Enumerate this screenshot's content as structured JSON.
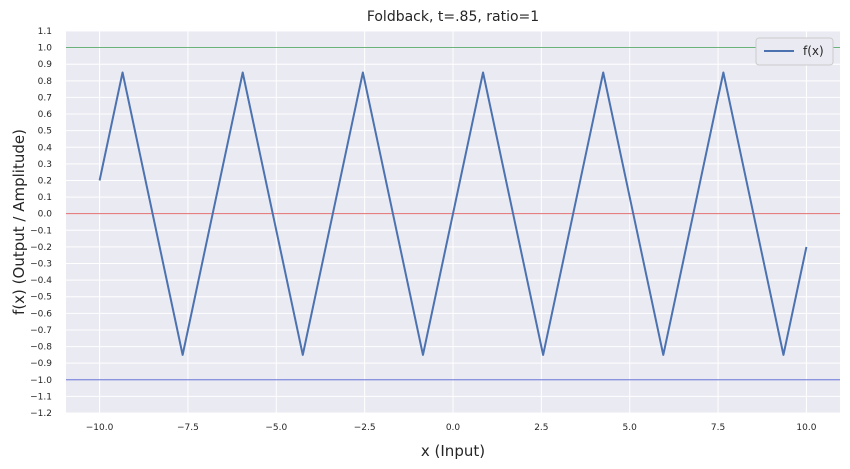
{
  "chart_data": {
    "type": "line",
    "title": "Foldback, t=.85, ratio=1",
    "xlabel": "x (Input)",
    "ylabel": "f(x) (Output / Amplitude)",
    "xlim": [
      -10.95,
      10.95
    ],
    "ylim": [
      -1.2,
      1.1
    ],
    "xticks": [
      "−10.0",
      "−7.5",
      "−5.0",
      "−2.5",
      "0.0",
      "2.5",
      "5.0",
      "7.5",
      "10.0"
    ],
    "xtick_values": [
      -10,
      -7.5,
      -5,
      -2.5,
      0,
      2.5,
      5,
      7.5,
      10
    ],
    "yticks": [
      "1.1",
      "1.0",
      "0.9",
      "0.8",
      "0.7",
      "0.6",
      "0.5",
      "0.4",
      "0.3",
      "0.2",
      "0.1",
      "0.0",
      "−0.1",
      "−0.2",
      "−0.3",
      "−0.4",
      "−0.5",
      "−0.6",
      "−0.7",
      "−0.8",
      "−0.9",
      "−1.0",
      "−1.1",
      "−1.2"
    ],
    "ytick_values": [
      1.1,
      1.0,
      0.9,
      0.8,
      0.7,
      0.6,
      0.5,
      0.4,
      0.3,
      0.2,
      0.1,
      0.0,
      -0.1,
      -0.2,
      -0.3,
      -0.4,
      -0.5,
      -0.6,
      -0.7,
      -0.8,
      -0.9,
      -1.0,
      -1.1,
      -1.2
    ],
    "grid": true,
    "legend_placement": "top-right",
    "series": [
      {
        "name": "f(x)",
        "color": "#4c72b0",
        "x": [
          -10.0,
          -9.35,
          -7.65,
          -5.95,
          -4.25,
          -2.55,
          -0.85,
          0.85,
          2.55,
          4.25,
          5.95,
          7.65,
          9.35,
          10.0
        ],
        "y": [
          0.2,
          0.85,
          -0.85,
          0.85,
          -0.85,
          0.85,
          -0.85,
          0.85,
          -0.85,
          0.85,
          -0.85,
          0.85,
          -0.85,
          -0.2
        ]
      }
    ],
    "reference_lines": [
      {
        "y": 1.0,
        "color": "#55a868"
      },
      {
        "y": 0.0,
        "color": "#e05a5a"
      },
      {
        "y": -1.0,
        "color": "#4c5ad0"
      }
    ],
    "colors": {
      "plot_background": "#eaeaf2",
      "grid": "#ffffff",
      "text": "#262626"
    }
  }
}
